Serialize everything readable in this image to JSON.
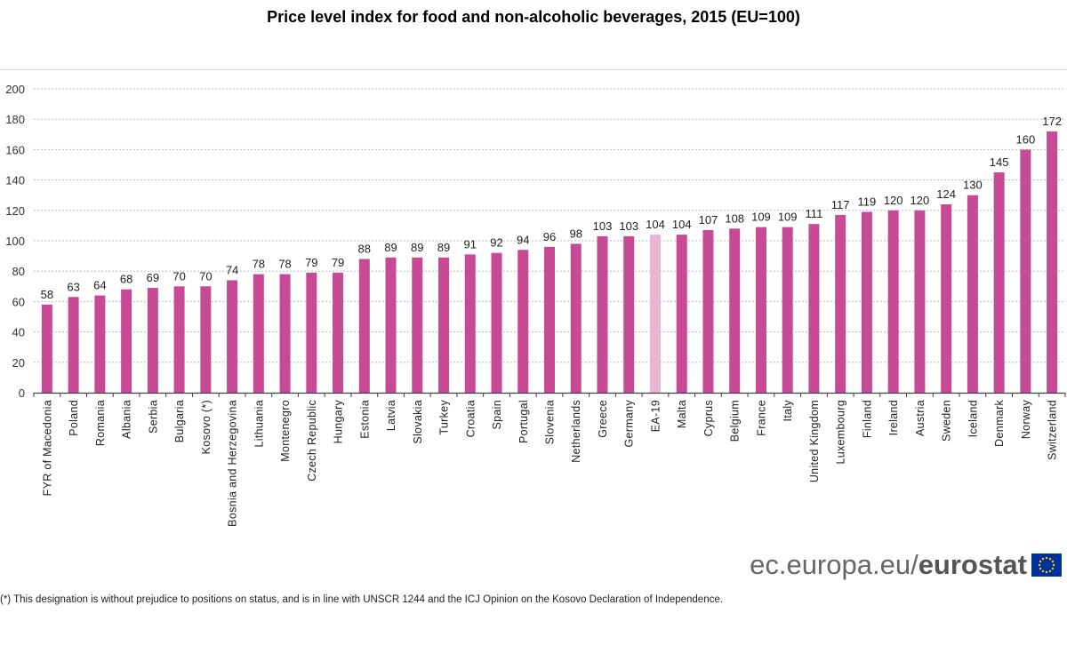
{
  "chart_data": {
    "type": "bar",
    "title": "Price level index for food and non-alcoholic beverages, 2015 (EU=100)",
    "xlabel": "",
    "ylabel": "",
    "ylim": [
      0,
      200
    ],
    "yticks": [
      0,
      20,
      40,
      60,
      80,
      100,
      120,
      140,
      160,
      180,
      200
    ],
    "grid": true,
    "categories": [
      "FYR of Macedonia",
      "Poland",
      "Romania",
      "Albania",
      "Serbia",
      "Bulgaria",
      "Kosovo (*)",
      "Bosnia and Herzegovina",
      "Lithuania",
      "Montenegro",
      "Czech Republic",
      "Hungary",
      "Estonia",
      "Latvia",
      "Slovakia",
      "Turkey",
      "Croatia",
      "Spain",
      "Portugal",
      "Slovenia",
      "Netherlands",
      "Greece",
      "Germany",
      "EA-19",
      "Malta",
      "Cyprus",
      "Belgium",
      "France",
      "Italy",
      "United Kingdom",
      "Luxembourg",
      "Finland",
      "Ireland",
      "Austria",
      "Sweden",
      "Iceland",
      "Denmark",
      "Norway",
      "Switzerland"
    ],
    "values": [
      58,
      63,
      64,
      68,
      69,
      70,
      70,
      74,
      78,
      78,
      79,
      79,
      88,
      89,
      89,
      89,
      91,
      92,
      94,
      96,
      98,
      103,
      103,
      104,
      104,
      107,
      108,
      109,
      109,
      111,
      117,
      119,
      120,
      120,
      124,
      130,
      145,
      160,
      172
    ],
    "highlight": [
      "EA-19"
    ],
    "colors": {
      "bar": "#c64a95",
      "highlight": "#ebb5d6",
      "grid": "#bfbfbf",
      "axis": "#404040"
    }
  },
  "branding": {
    "url_light": "ec.europa.eu/",
    "url_bold": "eurostat",
    "flag": "eu-flag-icon"
  },
  "footnote": "(*) This designation is without prejudice to positions on status, and is in line with UNSCR 1244 and the ICJ Opinion on the Kosovo Declaration of Independence."
}
